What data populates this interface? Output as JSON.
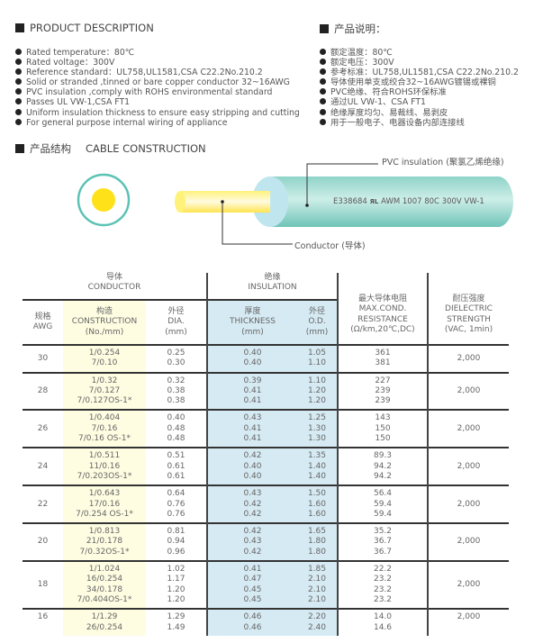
{
  "desc_en": {
    "title": "PRODUCT DESCRIPTION",
    "items": [
      "Rated temperature：80℃",
      "Rated voltage：300V",
      "Reference standard：UL758,UL1581,CSA C22.2No.210.2",
      "Solid or stranded ,tinned or bare copper conductor 32~16AWG",
      "PVC insulation ,comply with ROHS environmental standard",
      "Passes UL VW-1,CSA FT1",
      "Uniform insulation thickness to ensure easy stripping and cutting",
      "For general purpose internal wiring of appliance"
    ]
  },
  "desc_cn": {
    "title": "产品说明：",
    "items": [
      "额定温度：80℃",
      "额定电压：300V",
      "参考标准：UL758,UL1581,CSA C22.2No.210.2",
      "导体使用单支或绞合32~16AWG镀锡或裸铜",
      "PVC绝缘、符合ROHS环保标准",
      "通过UL VW-1、CSA FT1",
      "绝缘厚度均匀、易裁线、易剥皮",
      "用于一般电子、电器设备内部连接线"
    ]
  },
  "construction": {
    "title_cn": "产品结构",
    "title_en": "CABLE CONSTRUCTION",
    "insulation_label": "PVC insulation (聚氯乙烯绝缘)",
    "conductor_label": "Conductor (导体)",
    "marking": "E338684",
    "marking_rest": "AWM 1007 80C 300V VW-1",
    "ul_logo": "UL",
    "colors": {
      "insulation": "#8fd3c8",
      "conductor": "#ffe11a"
    }
  },
  "table": {
    "group_conductor": [
      "导体",
      "CONDUCTOR"
    ],
    "group_insulation": [
      "绝缘",
      "INSULATION"
    ],
    "headers": {
      "awg": [
        "规格",
        "AWG"
      ],
      "construction": [
        "构造",
        "CONSTRUCTION",
        "(No./mm)"
      ],
      "dia": [
        "外径",
        "DIA.",
        "(mm)"
      ],
      "thickness": [
        "厚度",
        "THICKNESS",
        "(mm)"
      ],
      "od": [
        "外径",
        "O.D.",
        "(mm)"
      ],
      "resistance": [
        "最大导体电阻",
        "MAX.COND.",
        "RESISTANCE",
        "(Ω/km,20℃,DC)"
      ],
      "dielectric": [
        "耐压强度",
        "DIELECTRIC",
        "STRENGTH",
        "(VAC, 1min)"
      ]
    },
    "rows": [
      {
        "awg": "30",
        "construction": [
          "1/0.254",
          "7/0.10"
        ],
        "dia": [
          "0.25",
          "0.30"
        ],
        "thickness": [
          "0.40",
          "0.40"
        ],
        "od": [
          "1.05",
          "1.10"
        ],
        "resistance": [
          "361",
          "381"
        ],
        "dielectric": "2,000"
      },
      {
        "awg": "28",
        "construction": [
          "1/0.32",
          "7/0.127",
          "7/0.127OS-1*"
        ],
        "dia": [
          "0.32",
          "0.38",
          "0.38"
        ],
        "thickness": [
          "0.39",
          "0.41",
          "0.41"
        ],
        "od": [
          "1.10",
          "1.20",
          "1.20"
        ],
        "resistance": [
          "227",
          "239",
          "239"
        ],
        "dielectric": "2,000"
      },
      {
        "awg": "26",
        "construction": [
          "1/0.404",
          "7/0.16",
          "7/0.16 OS-1*"
        ],
        "dia": [
          "0.40",
          "0.48",
          "0.48"
        ],
        "thickness": [
          "0.43",
          "0.41",
          "0.41"
        ],
        "od": [
          "1.25",
          "1.30",
          "1.30"
        ],
        "resistance": [
          "143",
          "150",
          "150"
        ],
        "dielectric": "2,000"
      },
      {
        "awg": "24",
        "construction": [
          "1/0.511",
          "11/0.16",
          "7/0.203OS-1*"
        ],
        "dia": [
          "0.51",
          "0.61",
          "0.61"
        ],
        "thickness": [
          "0.42",
          "0.40",
          "0.40"
        ],
        "od": [
          "1.35",
          "1.40",
          "1.40"
        ],
        "resistance": [
          "89.3",
          "94.2",
          "94.2"
        ],
        "dielectric": "2,000"
      },
      {
        "awg": "22",
        "construction": [
          "1/0.643",
          "17/0.16",
          "7/0.254 OS-1*"
        ],
        "dia": [
          "0.64",
          "0.76",
          "0.76"
        ],
        "thickness": [
          "0.43",
          "0.42",
          "0.42"
        ],
        "od": [
          "1.50",
          "1.60",
          "1.60"
        ],
        "resistance": [
          "56.4",
          "59.4",
          "59.4"
        ],
        "dielectric": "2,000"
      },
      {
        "awg": "20",
        "construction": [
          "1/0.813",
          "21/0.178",
          "7/0.32OS-1*"
        ],
        "dia": [
          "0.81",
          "0.94",
          "0.96"
        ],
        "thickness": [
          "0.42",
          "0.43",
          "0.42"
        ],
        "od": [
          "1.65",
          "1.80",
          "1.80"
        ],
        "resistance": [
          "35.2",
          "36.7",
          "36.7"
        ],
        "dielectric": "2,000"
      },
      {
        "awg": "18",
        "construction": [
          "1/1.024",
          "16/0.254",
          "34/0.178",
          "7/0.404OS-1*"
        ],
        "dia": [
          "1.02",
          "1.17",
          "1.20",
          "1.20"
        ],
        "thickness": [
          "0.41",
          "0.47",
          "0.45",
          "0.45"
        ],
        "od": [
          "1.85",
          "2.10",
          "2.10",
          "2.10"
        ],
        "resistance": [
          "22.2",
          "23.2",
          "23.2",
          "23.2"
        ],
        "dielectric": "2,000"
      },
      {
        "awg": "16",
        "construction": [
          "1/1.29",
          "26/0.254"
        ],
        "dia": [
          "1.29",
          "1.49"
        ],
        "thickness": [
          "0.46",
          "0.46"
        ],
        "od": [
          "2.20",
          "2.40"
        ],
        "resistance": [
          "14.0",
          "14.6"
        ],
        "dielectric": "2,000"
      }
    ]
  }
}
